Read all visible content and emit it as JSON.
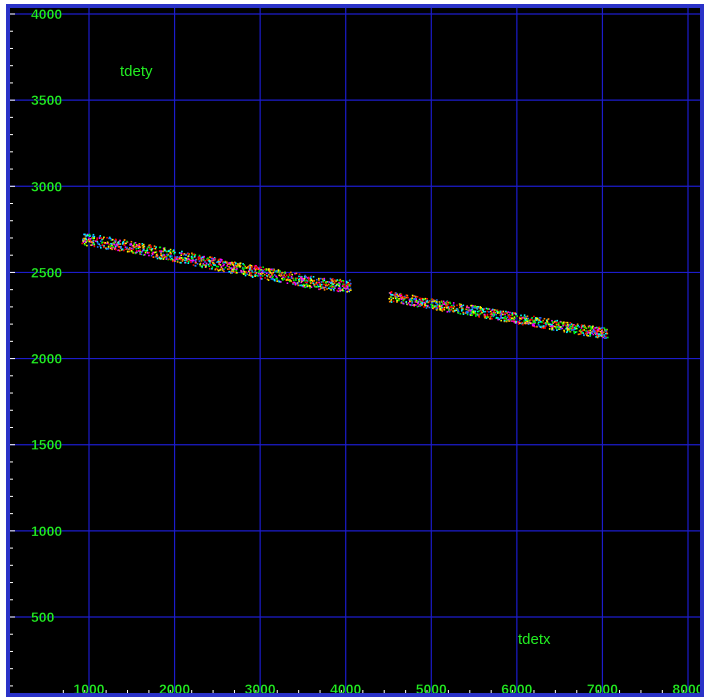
{
  "colors": {
    "background": "#000000",
    "frame": "#ffffff",
    "border": "#2a32c8",
    "grid": "#1c1ccc",
    "text": "#22ee22",
    "ticks": "#ffffff"
  },
  "chart_data": {
    "type": "scatter",
    "title": "",
    "xlabel": "tdetx",
    "ylabel": "tdety",
    "xlim": [
      600,
      8000
    ],
    "ylim": [
      0,
      4000
    ],
    "x_ticks": [
      1000,
      2000,
      3000,
      4000,
      5000,
      6000,
      7000,
      8000
    ],
    "y_ticks": [
      500,
      1000,
      1500,
      2000,
      2500,
      3000,
      3500,
      4000
    ],
    "x_tick_labels": [
      "1000",
      "2000",
      "3000",
      "4000",
      "5000",
      "6000",
      "7000",
      "8000"
    ],
    "y_tick_labels": [
      "500",
      "1000",
      "1500",
      "2000",
      "2500",
      "3000",
      "3500",
      "4000"
    ],
    "grid": true,
    "legend": "none",
    "marker_colors": [
      "#ff0000",
      "#00ff00",
      "#2266ff",
      "#ff00ff",
      "#ffff00",
      "#00ffff",
      "#ff8800"
    ],
    "series": [
      {
        "name": "",
        "x": [
          900,
          1100,
          1300,
          1500,
          1700,
          1900,
          2100,
          2300,
          2500,
          2700,
          2900,
          3100,
          3300,
          3500,
          3700,
          3900,
          4050
        ],
        "y": [
          2700,
          2685,
          2668,
          2650,
          2630,
          2610,
          2590,
          2570,
          2550,
          2530,
          2512,
          2494,
          2475,
          2455,
          2438,
          2430,
          2425
        ],
        "spread": 35
      },
      {
        "name": "",
        "x": [
          4500,
          4700,
          4900,
          5100,
          5300,
          5500,
          5700,
          5900,
          6100,
          6300,
          6500,
          6700,
          6900,
          7050
        ],
        "y": [
          2365,
          2348,
          2330,
          2312,
          2296,
          2280,
          2262,
          2245,
          2228,
          2210,
          2192,
          2175,
          2160,
          2150
        ],
        "spread": 30
      }
    ]
  }
}
